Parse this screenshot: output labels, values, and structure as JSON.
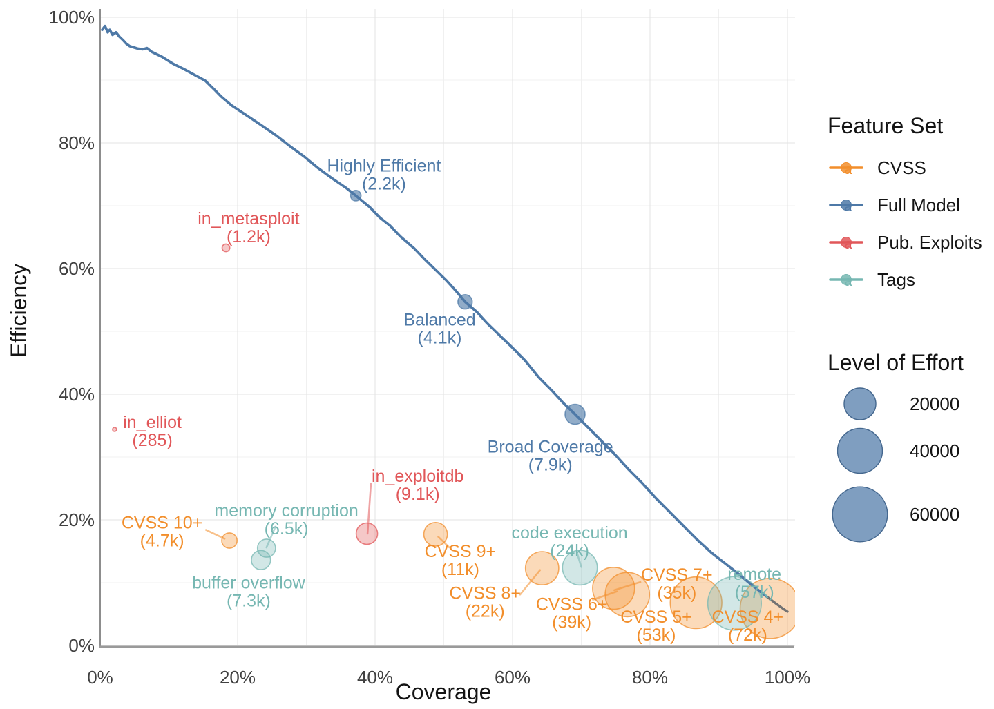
{
  "chart_data": {
    "type": "scatter",
    "subtype": "bubble-scatter-with-frontier-line",
    "title": "",
    "xlabel": "Coverage",
    "ylabel": "Efficiency",
    "xlim": [
      0,
      100
    ],
    "ylim": [
      0,
      100
    ],
    "grid": "major+minor",
    "legend_position": "right",
    "x_tick_values": [
      0,
      20,
      40,
      60,
      80,
      100
    ],
    "x_tick_labels": [
      "0%",
      "20%",
      "40%",
      "60%",
      "80%",
      "100%"
    ],
    "y_tick_values": [
      0,
      20,
      40,
      60,
      80,
      100
    ],
    "y_tick_labels": [
      "0%",
      "20%",
      "40%",
      "60%",
      "80%",
      "100%"
    ],
    "minor_tick_values": [
      10,
      30,
      50,
      70,
      90
    ],
    "series_colors": {
      "CVSS": "#f28e2b",
      "Full Model": "#4e79a7",
      "Pub. Exploits": "#e15759",
      "Tags": "#76b7b2"
    },
    "curve_color": "#4e79a7",
    "curve_tail_color": "#737373",
    "full_model_curve": [
      [
        0.3,
        98.0
      ],
      [
        0.7,
        98.6
      ],
      [
        1.1,
        97.6
      ],
      [
        1.4,
        98.0
      ],
      [
        1.8,
        97.2
      ],
      [
        2.3,
        97.6
      ],
      [
        2.8,
        96.9
      ],
      [
        3.3,
        96.4
      ],
      [
        3.8,
        95.8
      ],
      [
        4.3,
        95.4
      ],
      [
        4.9,
        95.2
      ],
      [
        5.5,
        95.0
      ],
      [
        6.2,
        94.9
      ],
      [
        6.8,
        95.1
      ],
      [
        7.5,
        94.5
      ],
      [
        9.0,
        93.7
      ],
      [
        10.6,
        92.6
      ],
      [
        12.1,
        91.8
      ],
      [
        13.6,
        90.9
      ],
      [
        15.3,
        89.9
      ],
      [
        16.6,
        88.5
      ],
      [
        17.6,
        87.4
      ],
      [
        19.1,
        86.0
      ],
      [
        20.6,
        84.9
      ],
      [
        22.1,
        83.8
      ],
      [
        23.6,
        82.7
      ],
      [
        25.6,
        81.2
      ],
      [
        27.6,
        79.5
      ],
      [
        29.6,
        77.9
      ],
      [
        31.7,
        76.0
      ],
      [
        33.7,
        74.4
      ],
      [
        35.7,
        72.9
      ],
      [
        37.2,
        71.6
      ],
      [
        39.2,
        69.8
      ],
      [
        40.7,
        68.1
      ],
      [
        42.2,
        66.8
      ],
      [
        43.7,
        65.1
      ],
      [
        45.7,
        63.2
      ],
      [
        47.2,
        61.5
      ],
      [
        48.7,
        59.9
      ],
      [
        50.3,
        58.2
      ],
      [
        51.8,
        56.4
      ],
      [
        53.1,
        54.7
      ],
      [
        54.8,
        53.1
      ],
      [
        56.3,
        51.3
      ],
      [
        57.8,
        49.7
      ],
      [
        59.8,
        47.6
      ],
      [
        61.8,
        45.4
      ],
      [
        63.8,
        42.7
      ],
      [
        65.8,
        40.5
      ],
      [
        67.3,
        38.7
      ],
      [
        69.1,
        36.8
      ],
      [
        70.9,
        34.8
      ],
      [
        72.9,
        32.6
      ],
      [
        74.9,
        30.4
      ],
      [
        76.9,
        28.0
      ],
      [
        78.9,
        25.8
      ],
      [
        80.9,
        23.4
      ],
      [
        82.9,
        21.2
      ],
      [
        84.9,
        19.0
      ],
      [
        86.9,
        16.8
      ],
      [
        88.9,
        14.8
      ],
      [
        91.0,
        13.0
      ],
      [
        93.0,
        11.3
      ],
      [
        94.5,
        9.9
      ],
      [
        96.0,
        8.6
      ],
      [
        97.2,
        7.6
      ]
    ],
    "curve_tail": [
      [
        97.2,
        7.6
      ],
      [
        98.4,
        6.6
      ],
      [
        99.3,
        5.9
      ],
      [
        100.0,
        5.4
      ]
    ],
    "points": [
      {
        "series": "CVSS",
        "name": "CVSS 10+",
        "value_label": "(4.7k)",
        "effort": 4700,
        "x": 18.8,
        "y": 16.7,
        "label": [
          9.0,
          18.2
        ],
        "leader": [
          [
            15.4,
            18.4
          ],
          [
            18.1,
            17.0
          ]
        ]
      },
      {
        "series": "CVSS",
        "name": "CVSS 9+",
        "value_label": "(11k)",
        "effort": 11000,
        "x": 48.8,
        "y": 17.7,
        "label": [
          52.4,
          13.6
        ],
        "leader": [
          [
            50.8,
            15.6
          ],
          [
            49.2,
            17.3
          ]
        ]
      },
      {
        "series": "CVSS",
        "name": "CVSS 8+",
        "value_label": "(22k)",
        "effort": 22000,
        "x": 64.3,
        "y": 12.3,
        "label": [
          56.0,
          7.0
        ],
        "leader": [
          [
            61.1,
            8.1
          ],
          [
            64.0,
            12.0
          ]
        ]
      },
      {
        "series": "CVSS",
        "name": "CVSS 7+",
        "value_label": "(35k)",
        "effort": 35000,
        "x": 74.7,
        "y": 9.1,
        "label": [
          83.9,
          9.9
        ],
        "leader": [
          [
            78.6,
            10.1
          ],
          [
            74.8,
            8.8
          ]
        ]
      },
      {
        "series": "CVSS",
        "name": "CVSS 6+",
        "value_label": "(39k)",
        "effort": 39000,
        "x": 76.7,
        "y": 8.1,
        "label": [
          68.6,
          5.2
        ],
        "leader": [
          [
            71.7,
            7.3
          ],
          [
            75.2,
            8.6
          ]
        ]
      },
      {
        "series": "CVSS",
        "name": "CVSS 5+",
        "value_label": "(53k)",
        "effort": 53000,
        "x": 86.7,
        "y": 6.8,
        "label": [
          80.9,
          3.2
        ]
      },
      {
        "series": "CVSS",
        "name": "CVSS 4+",
        "value_label": "(72k)",
        "effort": 72000,
        "x": 97.5,
        "y": 5.9,
        "label": [
          94.2,
          3.2
        ]
      },
      {
        "series": "Tags",
        "name": "memory corruption",
        "value_label": "(6.5k)",
        "effort": 6500,
        "x": 24.2,
        "y": 15.5,
        "label": [
          27.1,
          20.1
        ],
        "leader": [
          [
            25.5,
            18.9
          ],
          [
            24.2,
            15.6
          ]
        ]
      },
      {
        "series": "Tags",
        "name": "buffer overflow",
        "value_label": "(7.3k)",
        "effort": 7300,
        "x": 23.4,
        "y": 13.6,
        "label": [
          21.6,
          8.6
        ]
      },
      {
        "series": "Tags",
        "name": "code execution",
        "value_label": "(24k)",
        "effort": 24000,
        "x": 69.8,
        "y": 12.4,
        "label": [
          68.3,
          16.6
        ],
        "leader": [
          [
            69.4,
            14.7
          ],
          [
            70.0,
            12.5
          ]
        ]
      },
      {
        "series": "Tags",
        "name": "remote",
        "value_label": "(57k)",
        "effort": 57000,
        "x": 92.3,
        "y": 6.7,
        "label": [
          95.2,
          10.0
        ]
      },
      {
        "series": "Pub. Exploits",
        "name": "in_metasploit",
        "value_label": "(1.2k)",
        "effort": 1200,
        "x": 18.3,
        "y": 63.3,
        "label": [
          21.6,
          66.6
        ]
      },
      {
        "series": "Pub. Exploits",
        "name": "in_elliot",
        "value_label": "(285)",
        "effort": 285,
        "x": 2.1,
        "y": 34.4,
        "label": [
          7.6,
          34.2
        ]
      },
      {
        "series": "Pub. Exploits",
        "name": "in_exploitdb",
        "value_label": "(9.1k)",
        "effort": 9100,
        "x": 38.8,
        "y": 17.8,
        "label": [
          46.2,
          25.6
        ],
        "leader": [
          [
            39.4,
            25.8
          ],
          [
            38.9,
            17.8
          ]
        ]
      },
      {
        "series": "Full Model",
        "name": "Highly Efficient",
        "value_label": "(2.2k)",
        "effort": 2200,
        "x": 37.2,
        "y": 71.6,
        "label": [
          41.3,
          75.0
        ]
      },
      {
        "series": "Full Model",
        "name": "Balanced",
        "value_label": "(4.1k)",
        "effort": 4100,
        "x": 53.1,
        "y": 54.7,
        "label": [
          49.4,
          50.5
        ]
      },
      {
        "series": "Full Model",
        "name": "Broad Coverage",
        "value_label": "(7.9k)",
        "effort": 7900,
        "x": 69.1,
        "y": 36.8,
        "label": [
          65.5,
          30.3
        ]
      }
    ],
    "feature_set_legend": {
      "title": "Feature Set",
      "items": [
        {
          "label": "CVSS",
          "series": "CVSS"
        },
        {
          "label": "Full Model",
          "series": "Full Model"
        },
        {
          "label": "Pub. Exploits",
          "series": "Pub. Exploits"
        },
        {
          "label": "Tags",
          "series": "Tags"
        }
      ]
    },
    "effort_legend": {
      "title": "Level of Effort",
      "sizes": [
        {
          "label": "20000",
          "value": 20000
        },
        {
          "label": "40000",
          "value": 40000
        },
        {
          "label": "60000",
          "value": 60000
        }
      ]
    }
  }
}
